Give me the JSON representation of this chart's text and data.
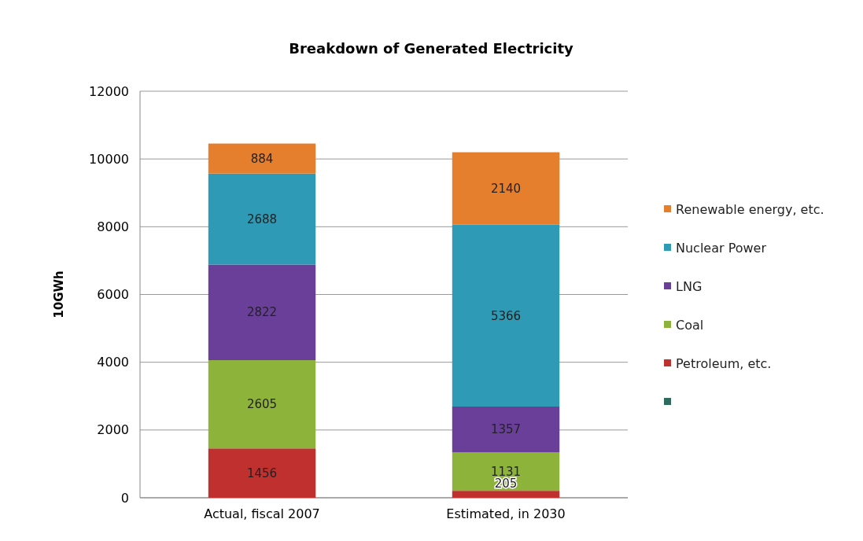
{
  "chart_data": {
    "type": "bar",
    "title": "Breakdown of Generated Electricity",
    "ylabel": "10GWh",
    "categories": [
      "Actual, fiscal 2007",
      "Estimated, in 2030"
    ],
    "stacked": true,
    "data_labels": true,
    "grid": "y",
    "legend": "right",
    "ylim": [
      0,
      12000
    ],
    "yticks": [
      0,
      2000,
      4000,
      6000,
      8000,
      10000,
      12000
    ],
    "series": [
      {
        "color": "#2e6b5e",
        "values": [
          null,
          null
        ]
      },
      {
        "name": "Petroleum, etc.",
        "color": "#c0302f",
        "values": [
          1456,
          205
        ]
      },
      {
        "name": "Coal",
        "color": "#8db33a",
        "values": [
          2605,
          1131
        ]
      },
      {
        "name": "LNG",
        "color": "#6a3f9a",
        "values": [
          2822,
          1357
        ]
      },
      {
        "name": "Nuclear Power",
        "color": "#2f9ab5",
        "values": [
          2688,
          5366
        ]
      },
      {
        "name": "Renewable energy, etc.",
        "color": "#e67f2d",
        "values": [
          884,
          2140
        ]
      }
    ]
  }
}
